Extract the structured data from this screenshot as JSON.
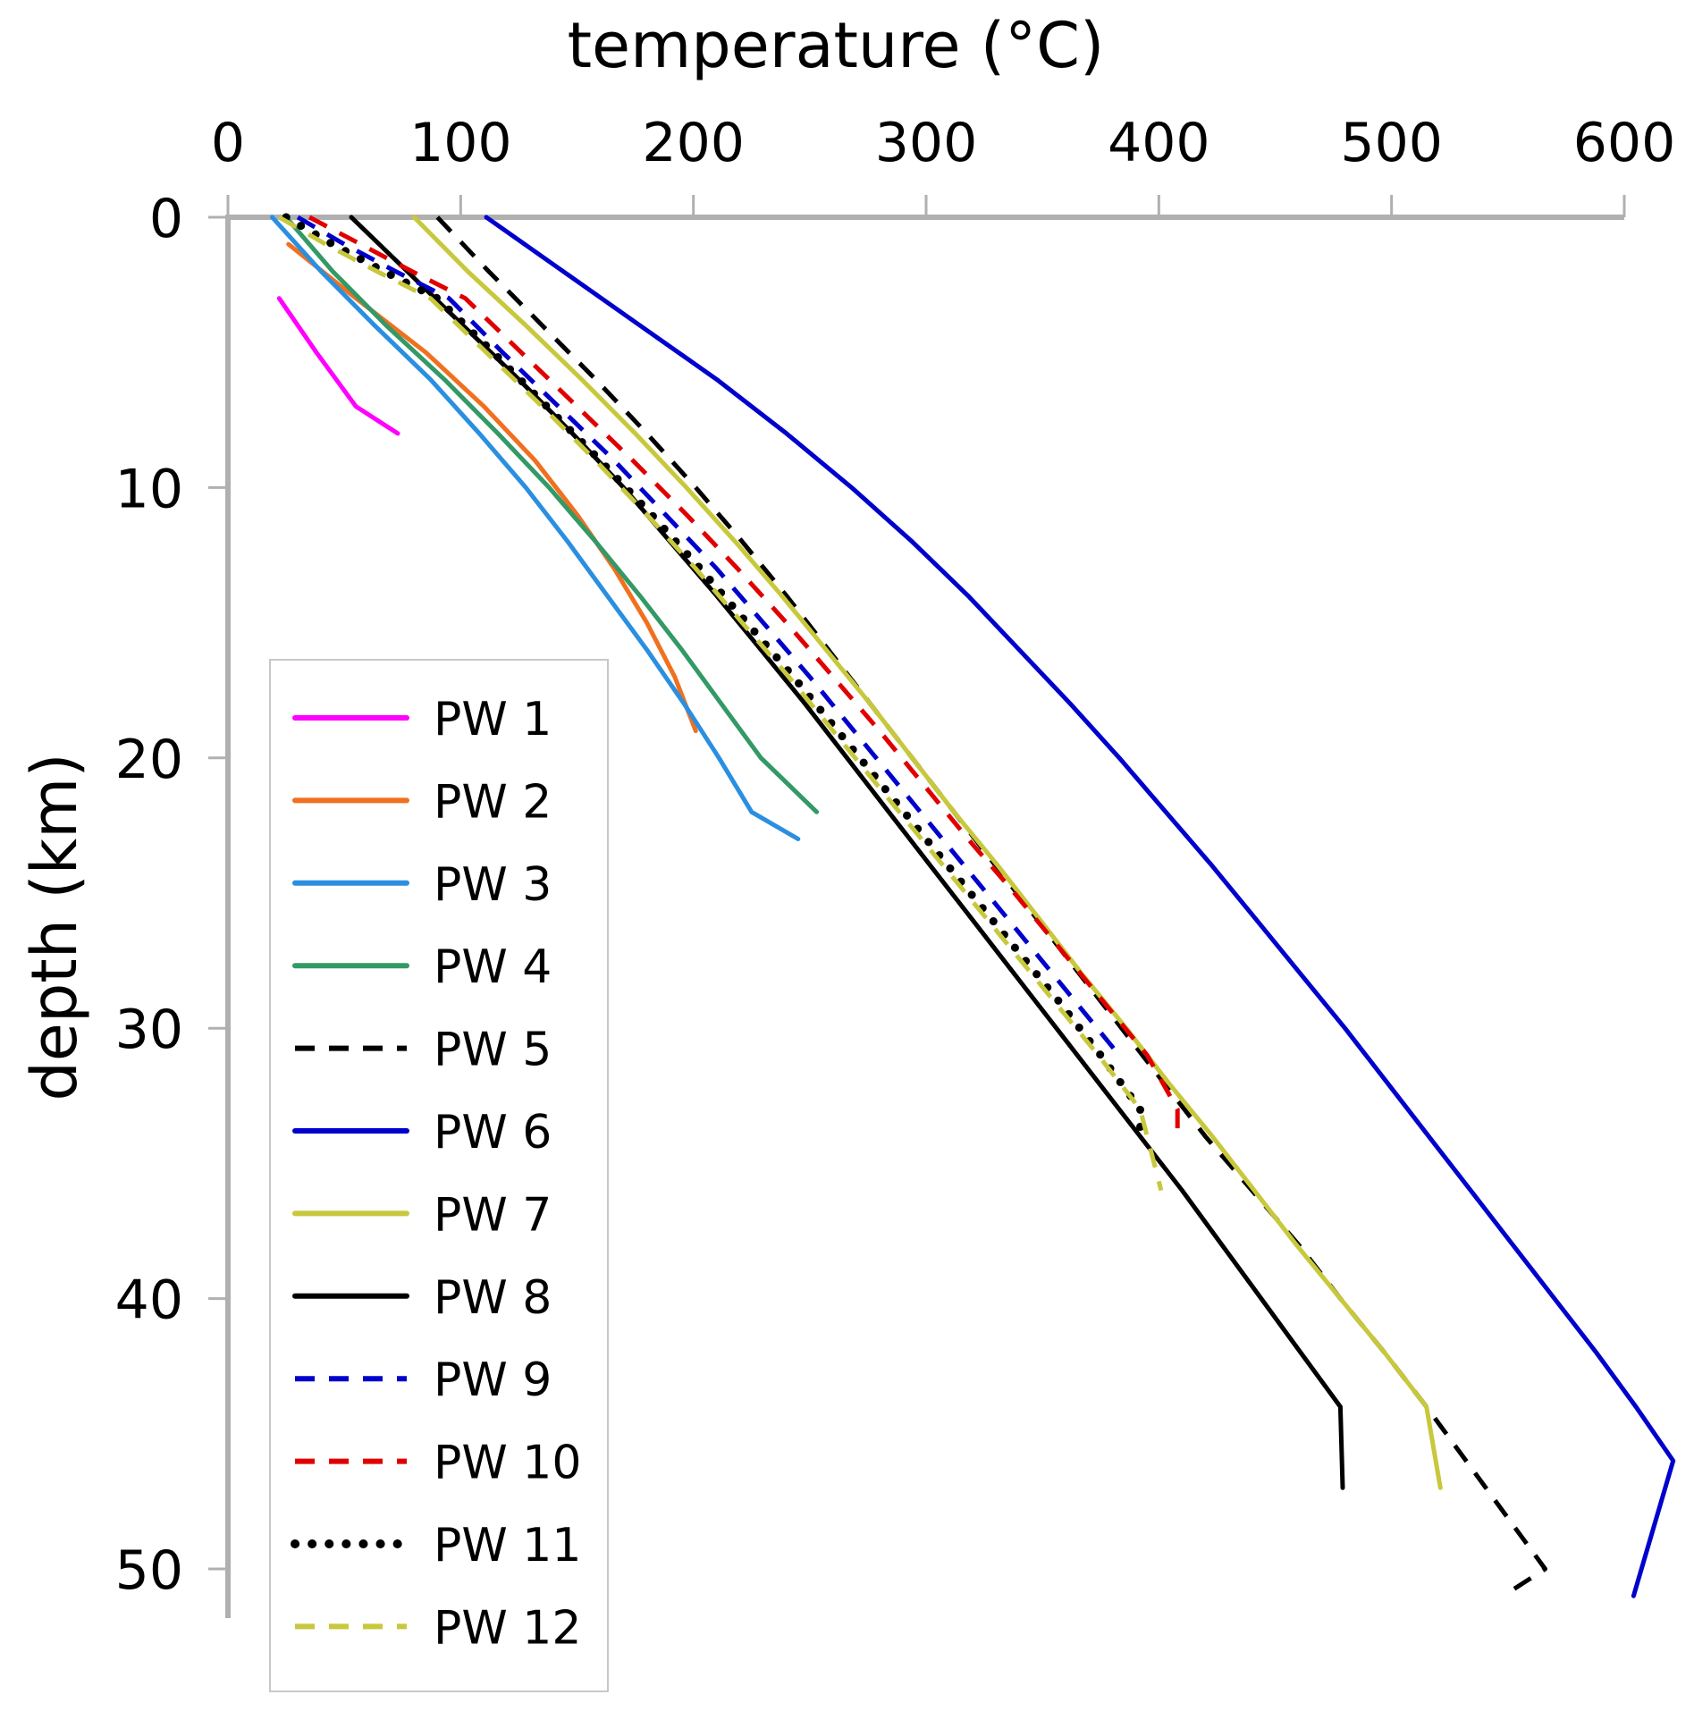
{
  "chart_data": {
    "type": "line",
    "title": "",
    "xlabel": "temperature",
    "xlabel_unit": "(°C)",
    "ylabel": "depth (km)",
    "xlim": [
      0,
      600
    ],
    "ylim": [
      52,
      0
    ],
    "x_ticks": [
      "0",
      "100",
      "200",
      "300",
      "400",
      "500",
      "600"
    ],
    "y_ticks": [
      "0",
      "10",
      "20",
      "30",
      "40",
      "50"
    ],
    "x_axis_position": "top",
    "y_axis_inverted": true,
    "grid": false,
    "legend_position": "bottom-left",
    "series": [
      {
        "name": "PW 1",
        "color": "#ff00ff",
        "dash": "solid",
        "points": [
          [
            22,
            3
          ],
          [
            38,
            5
          ],
          [
            55,
            7
          ],
          [
            73,
            8
          ]
        ]
      },
      {
        "name": "PW 2",
        "color": "#f07020",
        "dash": "solid",
        "points": [
          [
            26,
            1
          ],
          [
            55,
            3
          ],
          [
            85,
            5
          ],
          [
            110,
            7
          ],
          [
            132,
            9
          ],
          [
            150,
            11
          ],
          [
            166,
            13
          ],
          [
            180,
            15
          ],
          [
            192,
            17
          ],
          [
            201,
            19
          ]
        ]
      },
      {
        "name": "PW 3",
        "color": "#2a8fe0",
        "dash": "solid",
        "points": [
          [
            19,
            0
          ],
          [
            40,
            2
          ],
          [
            63,
            4
          ],
          [
            87,
            6
          ],
          [
            108,
            8
          ],
          [
            128,
            10
          ],
          [
            146,
            12
          ],
          [
            163,
            14
          ],
          [
            180,
            16
          ],
          [
            196,
            18
          ],
          [
            211,
            20
          ],
          [
            225,
            22
          ],
          [
            245,
            23
          ]
        ]
      },
      {
        "name": "PW 4",
        "color": "#339966",
        "dash": "solid",
        "points": [
          [
            25,
            0
          ],
          [
            45,
            2
          ],
          [
            68,
            4
          ],
          [
            93,
            6
          ],
          [
            116,
            8
          ],
          [
            138,
            10
          ],
          [
            158,
            12
          ],
          [
            177,
            14
          ],
          [
            195,
            16
          ],
          [
            212,
            18
          ],
          [
            229,
            20
          ],
          [
            253,
            22
          ]
        ]
      },
      {
        "name": "PW 5",
        "color": "#000000",
        "dash": "dashed",
        "points": [
          [
            90,
            0
          ],
          [
            112,
            2
          ],
          [
            135,
            4
          ],
          [
            158,
            6
          ],
          [
            180,
            8
          ],
          [
            201,
            10
          ],
          [
            221,
            12
          ],
          [
            240,
            14
          ],
          [
            258,
            16
          ],
          [
            276,
            18
          ],
          [
            294,
            20
          ],
          [
            312,
            22
          ],
          [
            330,
            24
          ],
          [
            348,
            26
          ],
          [
            366,
            28
          ],
          [
            384,
            30
          ],
          [
            402,
            32
          ],
          [
            420,
            34
          ],
          [
            440,
            36
          ],
          [
            460,
            38
          ],
          [
            478,
            40
          ],
          [
            497,
            42
          ],
          [
            515,
            44
          ],
          [
            532,
            46
          ],
          [
            549,
            48
          ],
          [
            566,
            50
          ],
          [
            548,
            51
          ]
        ]
      },
      {
        "name": "PW 6",
        "color": "#0000cc",
        "dash": "solid",
        "points": [
          [
            111,
            0
          ],
          [
            144,
            2
          ],
          [
            177,
            4
          ],
          [
            210,
            6
          ],
          [
            240,
            8
          ],
          [
            268,
            10
          ],
          [
            294,
            12
          ],
          [
            318,
            14
          ],
          [
            340,
            16
          ],
          [
            362,
            18
          ],
          [
            383,
            20
          ],
          [
            403,
            22
          ],
          [
            423,
            24
          ],
          [
            442,
            26
          ],
          [
            461,
            28
          ],
          [
            480,
            30
          ],
          [
            498,
            32
          ],
          [
            516,
            34
          ],
          [
            534,
            36
          ],
          [
            552,
            38
          ],
          [
            570,
            40
          ],
          [
            588,
            42
          ],
          [
            605,
            44
          ],
          [
            621,
            46
          ],
          [
            604,
            51
          ]
        ]
      },
      {
        "name": "PW 7",
        "color": "#c8c83c",
        "dash": "solid",
        "points": [
          [
            80,
            0
          ],
          [
            103,
            2
          ],
          [
            128,
            4
          ],
          [
            152,
            6
          ],
          [
            175,
            8
          ],
          [
            197,
            10
          ],
          [
            218,
            12
          ],
          [
            238,
            14
          ],
          [
            257,
            16
          ],
          [
            276,
            18
          ],
          [
            294,
            20
          ],
          [
            312,
            22
          ],
          [
            331,
            24
          ],
          [
            349,
            26
          ],
          [
            367,
            28
          ],
          [
            386,
            30
          ],
          [
            404,
            32
          ],
          [
            423,
            34
          ],
          [
            441,
            36
          ],
          [
            459,
            38
          ],
          [
            478,
            40
          ],
          [
            497,
            42
          ],
          [
            515,
            44
          ],
          [
            521,
            47
          ]
        ]
      },
      {
        "name": "PW 8",
        "color": "#000000",
        "dash": "solid",
        "points": [
          [
            53,
            0
          ],
          [
            77,
            2
          ],
          [
            101,
            4
          ],
          [
            125,
            6
          ],
          [
            148,
            8
          ],
          [
            170,
            10
          ],
          [
            190,
            12
          ],
          [
            210,
            14
          ],
          [
            229,
            16
          ],
          [
            248,
            18
          ],
          [
            266,
            20
          ],
          [
            284,
            22
          ],
          [
            302,
            24
          ],
          [
            320,
            26
          ],
          [
            338,
            28
          ],
          [
            356,
            30
          ],
          [
            374,
            32
          ],
          [
            392,
            34
          ],
          [
            410,
            36
          ],
          [
            427,
            38
          ],
          [
            444,
            40
          ],
          [
            461,
            42
          ],
          [
            478,
            44
          ],
          [
            479,
            47
          ]
        ]
      },
      {
        "name": "PW 9",
        "color": "#0000cc",
        "dash": "dashed",
        "points": [
          [
            30,
            0
          ],
          [
            50,
            1
          ],
          [
            72,
            2
          ],
          [
            95,
            3
          ],
          [
            118,
            5
          ],
          [
            142,
            7
          ],
          [
            166,
            9
          ],
          [
            188,
            11
          ],
          [
            210,
            13
          ],
          [
            230,
            15
          ],
          [
            250,
            17
          ],
          [
            269,
            19
          ],
          [
            288,
            21
          ],
          [
            307,
            23
          ],
          [
            326,
            25
          ],
          [
            345,
            27
          ],
          [
            364,
            29
          ],
          [
            383,
            31
          ],
          [
            384,
            31
          ]
        ]
      },
      {
        "name": "PW 10",
        "color": "#e00000",
        "dash": "dashed",
        "points": [
          [
            35,
            0
          ],
          [
            57,
            1
          ],
          [
            79,
            2
          ],
          [
            102,
            3
          ],
          [
            126,
            5
          ],
          [
            150,
            7
          ],
          [
            174,
            9
          ],
          [
            197,
            11
          ],
          [
            219,
            13
          ],
          [
            240,
            15
          ],
          [
            260,
            17
          ],
          [
            280,
            19
          ],
          [
            299,
            21
          ],
          [
            318,
            23
          ],
          [
            338,
            25
          ],
          [
            357,
            27
          ],
          [
            376,
            29
          ],
          [
            395,
            31
          ],
          [
            408,
            33
          ],
          [
            408,
            34
          ]
        ]
      },
      {
        "name": "PW 11",
        "color": "#000000",
        "dash": "dotted",
        "points": [
          [
            25,
            0
          ],
          [
            45,
            1
          ],
          [
            67,
            2
          ],
          [
            90,
            3
          ],
          [
            114,
            5
          ],
          [
            137,
            7
          ],
          [
            160,
            9
          ],
          [
            182,
            11
          ],
          [
            203,
            13
          ],
          [
            223,
            15
          ],
          [
            243,
            17
          ],
          [
            262,
            19
          ],
          [
            281,
            21
          ],
          [
            300,
            23
          ],
          [
            319,
            25
          ],
          [
            338,
            27
          ],
          [
            357,
            29
          ],
          [
            375,
            31
          ],
          [
            392,
            33
          ],
          [
            392,
            34
          ]
        ]
      },
      {
        "name": "PW 12",
        "color": "#c8c83c",
        "dash": "dashed",
        "points": [
          [
            22,
            0
          ],
          [
            42,
            1
          ],
          [
            64,
            2
          ],
          [
            87,
            3
          ],
          [
            111,
            5
          ],
          [
            135,
            7
          ],
          [
            158,
            9
          ],
          [
            180,
            11
          ],
          [
            201,
            13
          ],
          [
            221,
            15
          ],
          [
            241,
            17
          ],
          [
            260,
            19
          ],
          [
            279,
            21
          ],
          [
            298,
            23
          ],
          [
            317,
            25
          ],
          [
            336,
            27
          ],
          [
            355,
            29
          ],
          [
            374,
            31
          ],
          [
            392,
            33
          ],
          [
            401,
            36
          ]
        ]
      }
    ]
  }
}
